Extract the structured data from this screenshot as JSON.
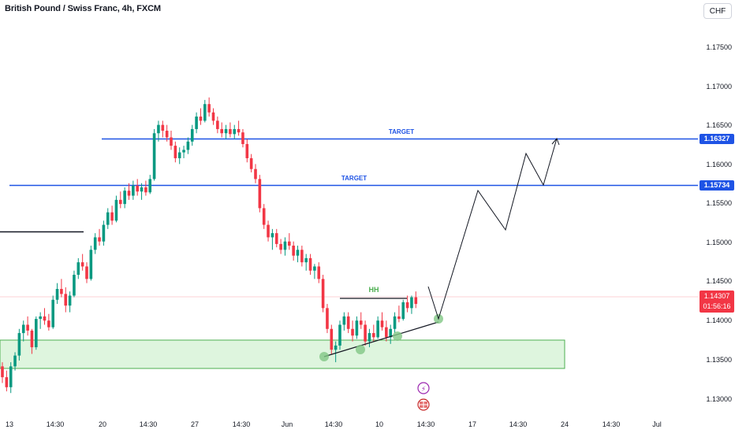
{
  "header": {
    "title": "British Pound / Swiss Franc, 4h, FXCM",
    "currency": "CHF"
  },
  "price_axis": {
    "ticks": [
      "1.17500",
      "1.17000",
      "1.16500",
      "1.16000",
      "1.15500",
      "1.15000",
      "1.14500",
      "1.14000",
      "1.13500",
      "1.13000"
    ],
    "current_price": "1.14307",
    "countdown": "01:56:16"
  },
  "time_axis": {
    "ticks": [
      "13",
      "14:30",
      "20",
      "14:30",
      "27",
      "14:30",
      "Jun",
      "14:30",
      "10",
      "14:30",
      "17",
      "14:30",
      "24",
      "14:30",
      "Jul"
    ]
  },
  "annotations": {
    "target_upper_label": "TARGET",
    "target_upper_price": "1.16327",
    "target_lower_label": "TARGET",
    "target_lower_price": "1.15734",
    "hh_label": "HH"
  },
  "colors": {
    "up_candle": "#089981",
    "down_candle": "#f23645",
    "target_line": "#1e53e5",
    "zone_fill": "#d8f3d8",
    "zone_border": "#4caf50",
    "marker": "#81c784"
  },
  "chart_data": {
    "type": "candlestick",
    "symbol": "GBP/CHF",
    "timeframe": "4h",
    "y_range": [
      1.1275,
      1.1795
    ],
    "levels": [
      1.16327,
      1.15734
    ],
    "demand_zone": [
      1.1339,
      1.1375
    ],
    "candles": [
      [
        1.1355,
        1.136,
        1.1335,
        1.1342
      ],
      [
        1.1342,
        1.135,
        1.1325,
        1.133
      ],
      [
        1.133,
        1.136,
        1.1323,
        1.1355
      ],
      [
        1.1355,
        1.1372,
        1.135,
        1.1368
      ],
      [
        1.1368,
        1.14,
        1.1362,
        1.1395
      ],
      [
        1.1395,
        1.141,
        1.1385,
        1.1405
      ],
      [
        1.1405,
        1.1415,
        1.1392,
        1.1398
      ],
      [
        1.1398,
        1.14,
        1.137,
        1.1378
      ],
      [
        1.1378,
        1.1415,
        1.1375,
        1.1412
      ],
      [
        1.1412,
        1.142,
        1.14,
        1.1415
      ],
      [
        1.1415,
        1.1425,
        1.1405,
        1.141
      ],
      [
        1.141,
        1.1418,
        1.1398,
        1.1402
      ],
      [
        1.1402,
        1.144,
        1.14,
        1.1435
      ],
      [
        1.1435,
        1.1455,
        1.143,
        1.1448
      ],
      [
        1.1448,
        1.146,
        1.1438,
        1.1442
      ],
      [
        1.1442,
        1.145,
        1.142,
        1.1428
      ],
      [
        1.1428,
        1.1445,
        1.142,
        1.144
      ],
      [
        1.144,
        1.147,
        1.1438,
        1.1465
      ],
      [
        1.1465,
        1.1485,
        1.146,
        1.148
      ],
      [
        1.148,
        1.149,
        1.147,
        1.1475
      ],
      [
        1.1475,
        1.148,
        1.1455,
        1.146
      ],
      [
        1.146,
        1.15,
        1.1458,
        1.1495
      ],
      [
        1.1495,
        1.1515,
        1.149,
        1.151
      ],
      [
        1.151,
        1.152,
        1.15,
        1.1505
      ],
      [
        1.1505,
        1.153,
        1.15,
        1.1525
      ],
      [
        1.1525,
        1.1545,
        1.152,
        1.154
      ],
      [
        1.154,
        1.1548,
        1.1525,
        1.153
      ],
      [
        1.153,
        1.156,
        1.1528,
        1.1555
      ],
      [
        1.1555,
        1.1565,
        1.1545,
        1.155
      ],
      [
        1.155,
        1.157,
        1.1545,
        1.1566
      ],
      [
        1.1566,
        1.1575,
        1.1555,
        1.156
      ],
      [
        1.156,
        1.1578,
        1.1555,
        1.1572
      ],
      [
        1.1572,
        1.158,
        1.156,
        1.1565
      ],
      [
        1.1565,
        1.1575,
        1.1555,
        1.157
      ],
      [
        1.157,
        1.1578,
        1.156,
        1.1564
      ],
      [
        1.1564,
        1.1585,
        1.1562,
        1.158
      ],
      [
        1.158,
        1.164,
        1.1578,
        1.1635
      ],
      [
        1.1635,
        1.165,
        1.1625,
        1.1645
      ],
      [
        1.1645,
        1.165,
        1.163,
        1.1638
      ],
      [
        1.1638,
        1.1645,
        1.1625,
        1.163
      ],
      [
        1.163,
        1.1638,
        1.1615,
        1.162
      ],
      [
        1.162,
        1.1625,
        1.16,
        1.1605
      ],
      [
        1.1605,
        1.1618,
        1.1598,
        1.1612
      ],
      [
        1.1612,
        1.162,
        1.1605,
        1.1615
      ],
      [
        1.1615,
        1.163,
        1.161,
        1.1625
      ],
      [
        1.1625,
        1.1645,
        1.162,
        1.164
      ],
      [
        1.164,
        1.166,
        1.1635,
        1.1655
      ],
      [
        1.1655,
        1.1665,
        1.1645,
        1.165
      ],
      [
        1.165,
        1.1675,
        1.1648,
        1.167
      ],
      [
        1.167,
        1.1678,
        1.1655,
        1.166
      ],
      [
        1.166,
        1.1665,
        1.1645,
        1.165
      ],
      [
        1.165,
        1.1655,
        1.1635,
        1.164
      ],
      [
        1.164,
        1.1648,
        1.163,
        1.1635
      ],
      [
        1.1635,
        1.1645,
        1.1628,
        1.164
      ],
      [
        1.164,
        1.1648,
        1.163,
        1.1634
      ],
      [
        1.1634,
        1.1645,
        1.1628,
        1.164
      ],
      [
        1.164,
        1.165,
        1.1632,
        1.1636
      ],
      [
        1.1636,
        1.164,
        1.1618,
        1.1622
      ],
      [
        1.1622,
        1.1628,
        1.16,
        1.1605
      ],
      [
        1.1605,
        1.161,
        1.1588,
        1.1592
      ],
      [
        1.1592,
        1.1598,
        1.1575,
        1.158
      ],
      [
        1.158,
        1.1585,
        1.154,
        1.1545
      ],
      [
        1.1545,
        1.155,
        1.152,
        1.1525
      ],
      [
        1.1525,
        1.153,
        1.1505,
        1.151
      ],
      [
        1.151,
        1.152,
        1.1495,
        1.1515
      ],
      [
        1.1515,
        1.152,
        1.1498,
        1.1502
      ],
      [
        1.1502,
        1.1508,
        1.149,
        1.1495
      ],
      [
        1.1495,
        1.151,
        1.1488,
        1.1505
      ],
      [
        1.1505,
        1.1515,
        1.1495,
        1.15
      ],
      [
        1.15,
        1.1505,
        1.1482,
        1.1488
      ],
      [
        1.1488,
        1.15,
        1.148,
        1.1495
      ],
      [
        1.1495,
        1.15,
        1.1475,
        1.148
      ],
      [
        1.148,
        1.149,
        1.147,
        1.1485
      ],
      [
        1.1485,
        1.149,
        1.1465,
        1.147
      ],
      [
        1.147,
        1.1478,
        1.146,
        1.1475
      ],
      [
        1.1475,
        1.148,
        1.1455,
        1.146
      ],
      [
        1.146,
        1.1465,
        1.142,
        1.1425
      ],
      [
        1.1425,
        1.143,
        1.1395,
        1.14
      ],
      [
        1.14,
        1.1405,
        1.137,
        1.1375
      ],
      [
        1.1375,
        1.1385,
        1.136,
        1.138
      ],
      [
        1.138,
        1.141,
        1.1375,
        1.1405
      ],
      [
        1.1405,
        1.142,
        1.1398,
        1.1415
      ],
      [
        1.1415,
        1.142,
        1.1395,
        1.14
      ],
      [
        1.14,
        1.141,
        1.1385,
        1.1392
      ],
      [
        1.1392,
        1.1415,
        1.1388,
        1.141
      ],
      [
        1.141,
        1.142,
        1.14,
        1.1405
      ],
      [
        1.1405,
        1.141,
        1.138,
        1.1385
      ],
      [
        1.1385,
        1.14,
        1.1378,
        1.1395
      ],
      [
        1.1395,
        1.1405,
        1.1385,
        1.139
      ],
      [
        1.139,
        1.1415,
        1.1388,
        1.141
      ],
      [
        1.141,
        1.142,
        1.1398,
        1.1402
      ],
      [
        1.1402,
        1.141,
        1.1385,
        1.139
      ],
      [
        1.139,
        1.1405,
        1.1382,
        1.14
      ],
      [
        1.14,
        1.142,
        1.1395,
        1.1415
      ],
      [
        1.1415,
        1.1428,
        1.1408,
        1.1412
      ],
      [
        1.1412,
        1.1435,
        1.141,
        1.1432
      ],
      [
        1.1432,
        1.144,
        1.142,
        1.1425
      ],
      [
        1.1425,
        1.144,
        1.1418,
        1.1438
      ],
      [
        1.1438,
        1.1445,
        1.1425,
        1.143
      ]
    ]
  }
}
